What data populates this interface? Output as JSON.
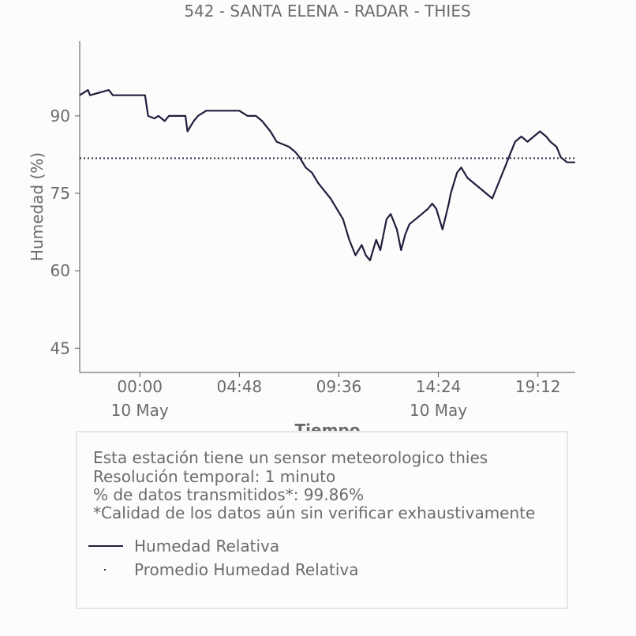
{
  "title": "542 - SANTA ELENA - RADAR - THIES",
  "chart_data": {
    "type": "line",
    "title": "542 - SANTA ELENA - RADAR - THIES",
    "xlabel": "Tiempo",
    "ylabel": "Humedad (%)",
    "x_ticks": [
      "00:00",
      "04:48",
      "09:36",
      "14:24",
      "19:12"
    ],
    "x_date_labels": [
      "10 May",
      "",
      "",
      "10 May",
      ""
    ],
    "y_ticks": [
      45,
      60,
      75,
      90
    ],
    "ylim": [
      40.3,
      104.5
    ],
    "xlim": [
      "09 May 21:00",
      "10 May 21:00"
    ],
    "x_unit": "hours since 10 May 00:00",
    "grid": false,
    "series": [
      {
        "name": "Humedad Relativa",
        "style": "solid",
        "color": "#1f1f3d",
        "x": [
          -2.9,
          -2.5,
          -2.4,
          -1.5,
          -1.3,
          -0.6,
          -0.3,
          0.25,
          0.4,
          0.7,
          0.9,
          1.2,
          1.4,
          1.7,
          2.2,
          2.3,
          2.6,
          2.8,
          3.2,
          3.5,
          4.0,
          4.3,
          4.8,
          5.2,
          5.6,
          5.9,
          6.3,
          6.6,
          7.2,
          7.5,
          7.7,
          8.0,
          8.3,
          8.6,
          8.8,
          9.2,
          9.5,
          9.8,
          10.1,
          10.4,
          10.7,
          10.9,
          11.1,
          11.4,
          11.6,
          11.9,
          12.1,
          12.4,
          12.6,
          12.8,
          13.0,
          13.3,
          13.6,
          13.9,
          14.1,
          14.3,
          14.6,
          14.9,
          15.0,
          15.3,
          15.5,
          15.8,
          16.1,
          16.4,
          16.7,
          17.0,
          17.3,
          17.6,
          17.9,
          18.1,
          18.4,
          18.7,
          19.0,
          19.3,
          19.6,
          19.8,
          20.1,
          20.3,
          20.6,
          20.9,
          21.0
        ],
        "values": [
          94,
          95,
          94,
          95,
          94,
          94,
          94,
          94,
          90,
          89.5,
          90,
          89,
          90,
          90,
          90,
          87,
          89,
          90,
          91,
          91,
          91,
          91,
          91,
          90,
          90,
          89,
          87,
          85,
          84,
          83,
          82,
          80,
          79,
          77,
          76,
          74,
          72,
          70,
          66,
          63,
          65,
          63,
          62,
          66,
          64,
          70,
          71,
          68,
          64,
          67,
          69,
          70,
          71,
          72,
          73,
          72,
          68,
          73,
          75,
          79,
          80,
          78,
          77,
          76,
          75,
          74,
          77,
          80,
          83,
          85,
          86,
          85,
          86,
          87,
          86,
          85,
          84,
          82,
          81,
          81,
          81
        ]
      },
      {
        "name": "Promedio Humedad Relativa",
        "style": "dotted",
        "color": "#1f1f3d",
        "x": [
          -2.9,
          21.0
        ],
        "values": [
          81.8,
          81.8
        ]
      }
    ],
    "legend": "bottom, inside info box"
  },
  "info": {
    "line1": "Esta estación tiene un sensor meteorologico thies",
    "line2": "Resolución temporal: 1 minuto",
    "line3": "% de datos transmitidos*: 99.86%",
    "line4": "*Calidad de los datos aún sin verificar exhaustivamente"
  },
  "legend": {
    "item1": "Humedad Relativa",
    "item2": "Promedio Humedad Relativa"
  },
  "colors": {
    "series": "#1f1f3d",
    "axis": "#555555",
    "text": "#6b6b6b",
    "background": "#fcfcfc"
  }
}
